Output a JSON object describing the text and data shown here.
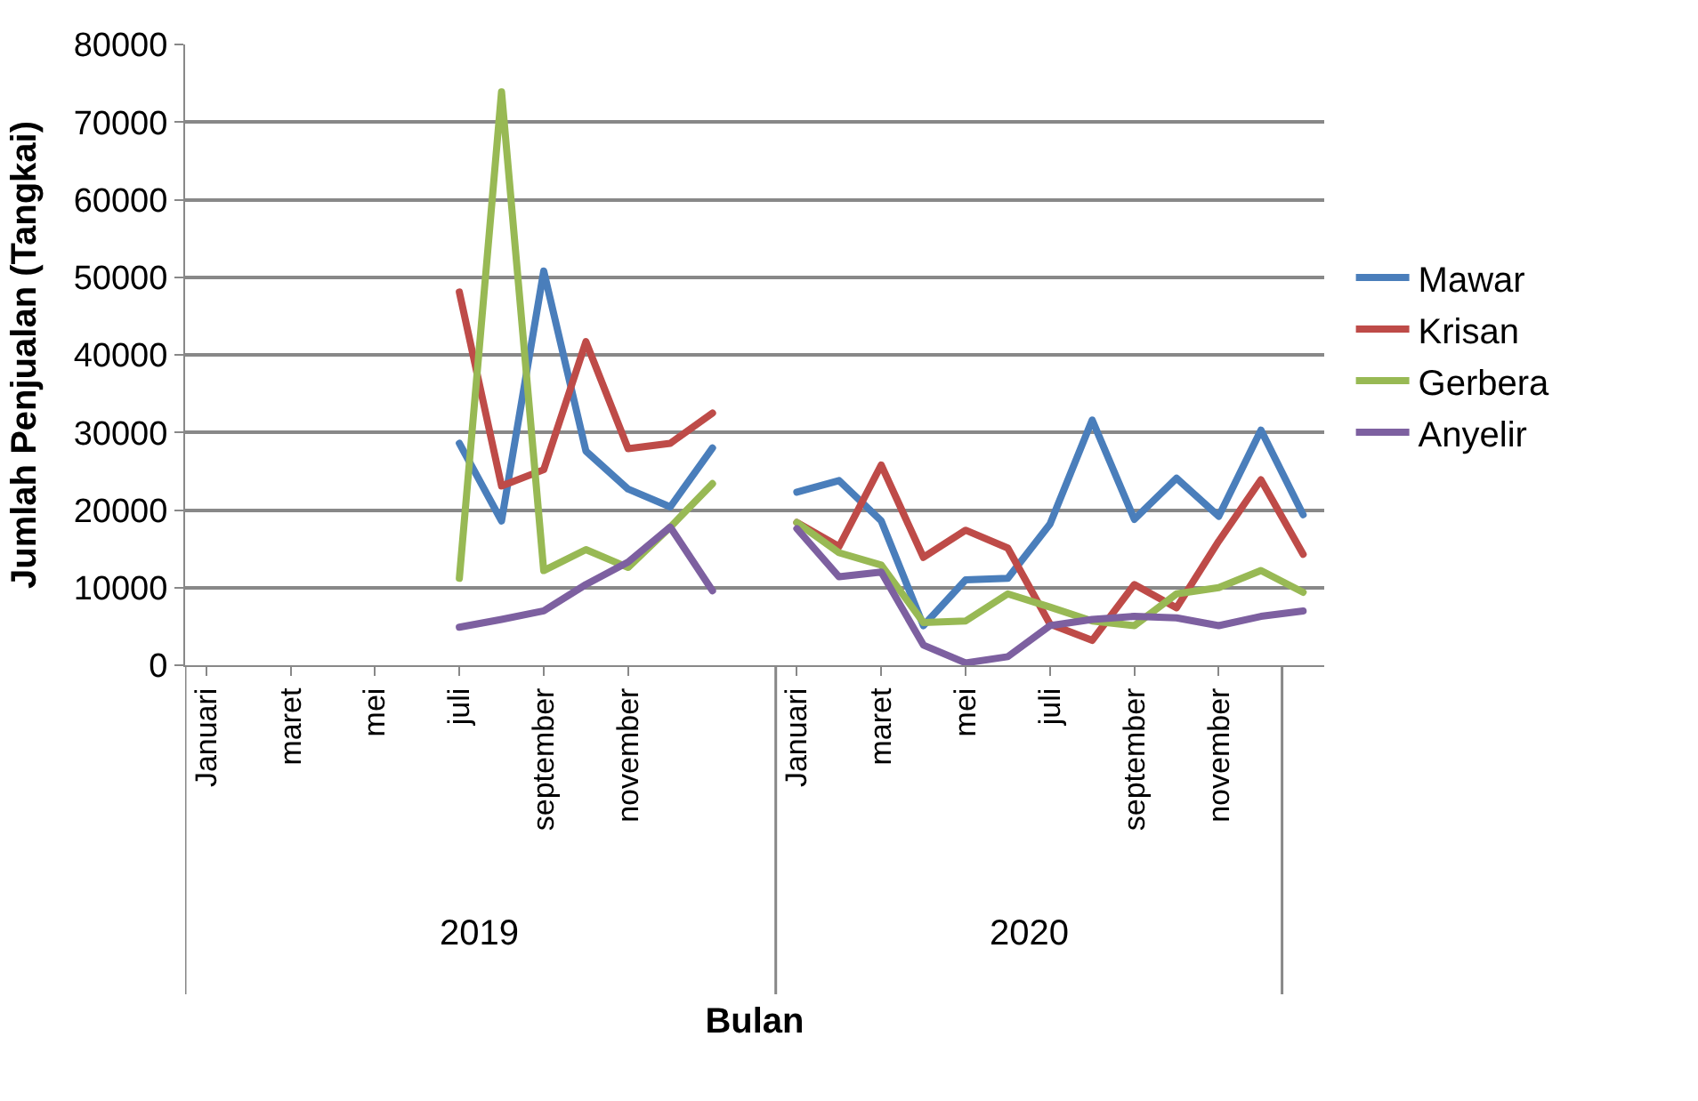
{
  "chart_data": {
    "type": "line",
    "xlabel": "Bulan",
    "ylabel": "Jumlah Penjualan (Tangkai)",
    "categories": [
      "Januari",
      null,
      "maret",
      null,
      "mei",
      null,
      "juli",
      null,
      "september",
      null,
      "november",
      null,
      null,
      null,
      "Januari",
      null,
      "maret",
      null,
      "mei",
      null,
      "juli",
      null,
      "september",
      null,
      "november",
      null,
      null
    ],
    "series": [
      {
        "name": "Mawar",
        "color": "#4a7ebb",
        "values": [
          null,
          null,
          null,
          null,
          null,
          null,
          28600,
          18600,
          50800,
          27600,
          22700,
          20400,
          28000,
          null,
          22300,
          23800,
          18600,
          5100,
          11000,
          11200,
          18200,
          31600,
          18800,
          24100,
          19200,
          30300,
          19400
        ]
      },
      {
        "name": "Krisan",
        "color": "#be4b48",
        "values": [
          null,
          null,
          null,
          null,
          null,
          null,
          48100,
          23100,
          25200,
          41700,
          27900,
          28600,
          32500,
          null,
          18400,
          15300,
          25800,
          13900,
          17400,
          15100,
          5300,
          3200,
          10400,
          7400,
          16000,
          23900,
          14300
        ]
      },
      {
        "name": "Gerbera",
        "color": "#98b954",
        "values": [
          null,
          null,
          null,
          null,
          null,
          null,
          11200,
          73900,
          12200,
          14900,
          12600,
          17800,
          23400,
          null,
          18400,
          14500,
          12900,
          5500,
          5700,
          9200,
          7500,
          5700,
          5100,
          9200,
          10000,
          12200,
          9400
        ]
      },
      {
        "name": "Anyelir",
        "color": "#7d60a0",
        "values": [
          null,
          null,
          null,
          null,
          null,
          null,
          4900,
          5900,
          7000,
          10400,
          13300,
          17800,
          9600,
          null,
          17600,
          11400,
          12000,
          2600,
          300,
          1100,
          5100,
          5900,
          6300,
          6100,
          5100,
          6300,
          7000
        ]
      }
    ],
    "annotations": [
      "2019",
      "2020"
    ],
    "ylim": [
      0,
      80000
    ],
    "yticks": [
      0,
      10000,
      20000,
      30000,
      40000,
      50000,
      60000,
      70000,
      80000
    ],
    "grid": "y",
    "legend": "right",
    "marker": "none",
    "line_style": "solid"
  }
}
